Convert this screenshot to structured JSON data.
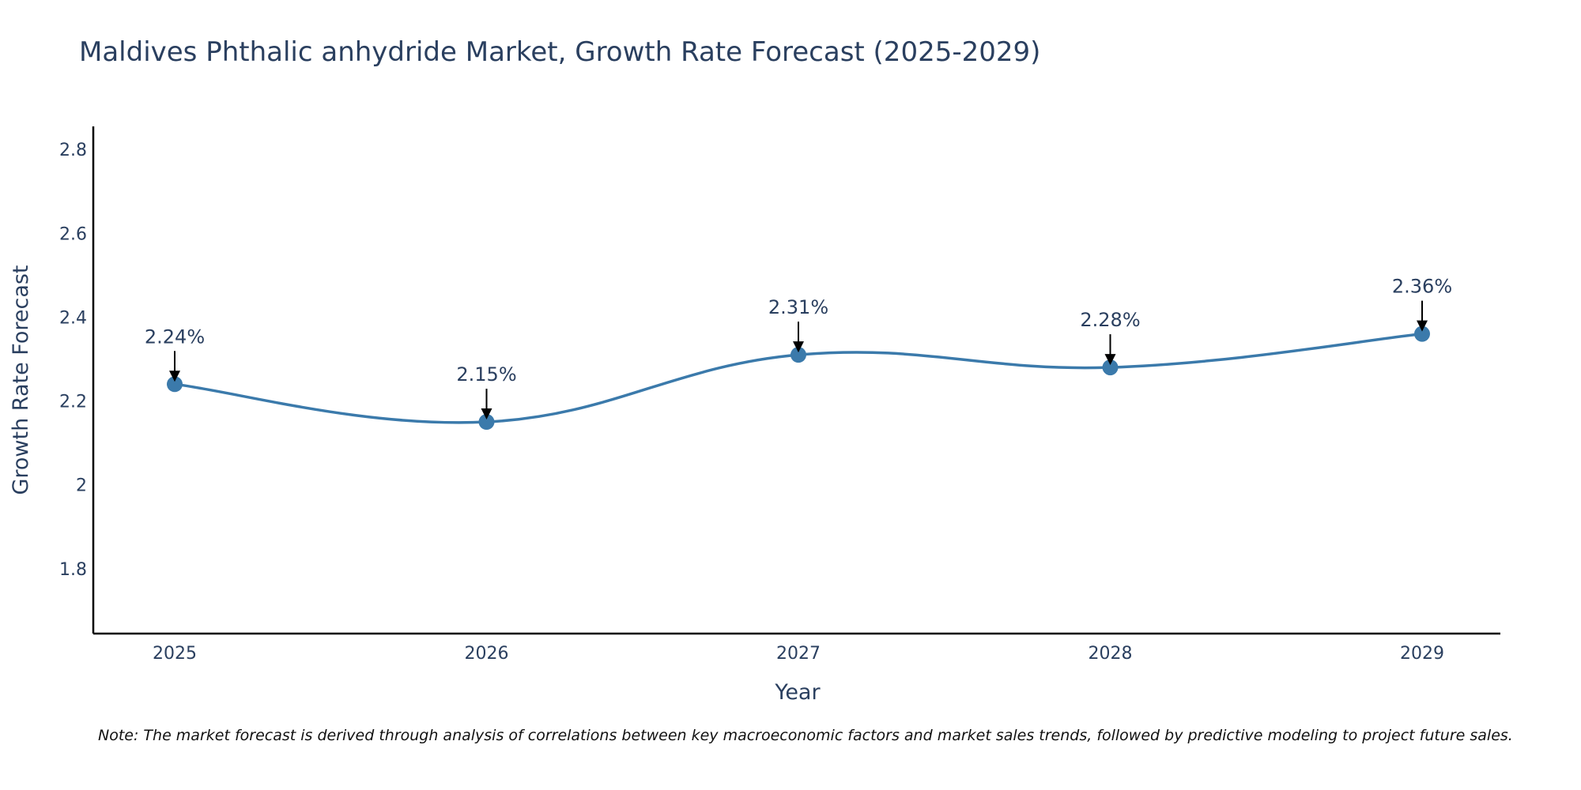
{
  "colors": {
    "line": "#3b7aab",
    "marker": "#3b7aab",
    "axis": "#000000",
    "text": "#2a3f5f"
  },
  "chart_data": {
    "type": "line",
    "title": "Maldives Phthalic anhydride Market, Growth Rate Forecast (2025-2029)",
    "xlabel": "Year",
    "ylabel": "Growth Rate Forecast",
    "categories": [
      "2025",
      "2026",
      "2027",
      "2028",
      "2029"
    ],
    "values": [
      2.24,
      2.15,
      2.31,
      2.28,
      2.36
    ],
    "data_labels": [
      "2.24%",
      "2.15%",
      "2.31%",
      "2.28%",
      "2.36%"
    ],
    "yticks": [
      1.8,
      2,
      2.2,
      2.4,
      2.6,
      2.8
    ],
    "ytick_labels": [
      "1.8",
      "2",
      "2.2",
      "2.4",
      "2.6",
      "2.8"
    ],
    "ylim": [
      1.645,
      2.855
    ],
    "grid": false,
    "line_shape": "spline"
  },
  "note": "Note: The market forecast is derived through analysis of correlations between key macroeconomic factors and market sales trends, followed by predictive modeling to project future sales."
}
